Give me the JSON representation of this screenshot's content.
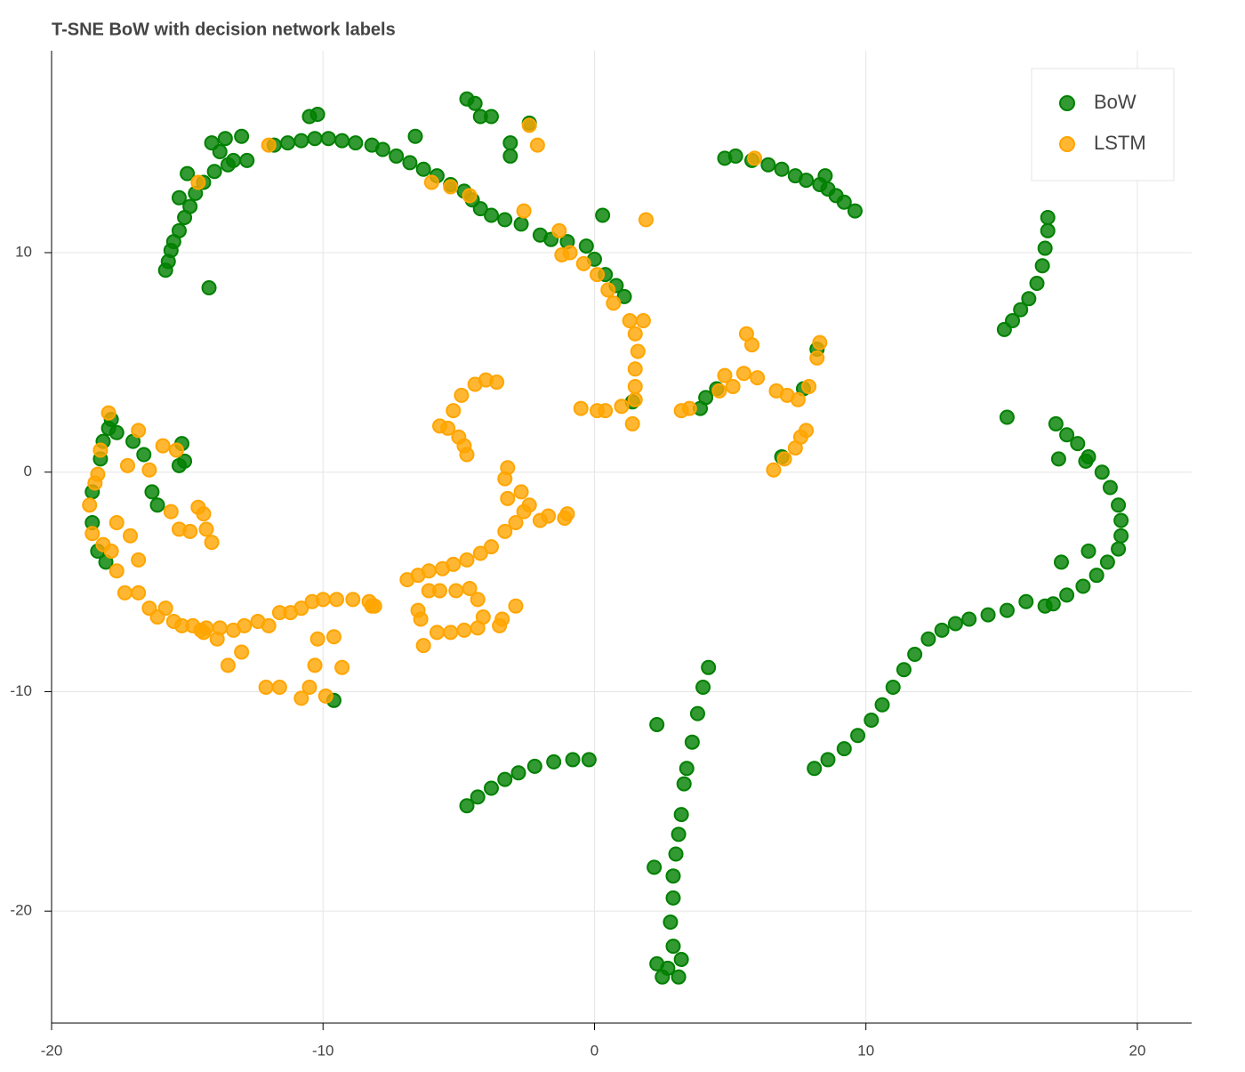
{
  "chart_data": {
    "type": "scatter",
    "title": "T-SNE BoW with decision network labels",
    "xlim": [
      -20,
      22
    ],
    "ylim": [
      -25.1,
      19.2
    ],
    "xticks": [
      -20,
      -10,
      0,
      10,
      20
    ],
    "yticks": [
      -20,
      -10,
      0,
      10
    ],
    "grid": true,
    "legend": "top-right",
    "series": [
      {
        "name": "BoW",
        "color": "green",
        "x": [
          -15.8,
          -15.7,
          -15.6,
          -15.5,
          -15.3,
          -15.1,
          -14.9,
          -15.3,
          -14.7,
          -14.4,
          -15,
          -14,
          -13.5,
          -13.3,
          -13.8,
          -14.1,
          -13.6,
          -13,
          -12.8,
          -11.8,
          -11.3,
          -10.8,
          -10.3,
          -9.8,
          -9.3,
          -8.8,
          -8.2,
          -7.8,
          -7.3,
          -6.8,
          -6.3,
          -5.8,
          -5.3,
          -4.8,
          -4.5,
          -4.2,
          -3.8,
          -3.3,
          -2.7,
          -2,
          -1.6,
          -1,
          -0.3,
          0,
          0.4,
          0.8,
          1.1,
          -14.2,
          -10.5,
          -10.2,
          -6.6,
          -4.7,
          -4.4,
          -4.2,
          -3.8,
          -2.4,
          -3.1,
          -3.1,
          0.3,
          1.4,
          4.8,
          5.2,
          5.8,
          6.4,
          6.9,
          7.4,
          7.8,
          8.3,
          8.6,
          8.9,
          9.2,
          9.6,
          8.5,
          4.5,
          4.1,
          3.9,
          7.7,
          8.2,
          6.9,
          15.1,
          15.4,
          15.7,
          16,
          16.3,
          16.5,
          16.6,
          16.7,
          16.7,
          15.2,
          17,
          17.4,
          17.8,
          18.2,
          18.7,
          19,
          19.3,
          19.4,
          19.4,
          19.3,
          18.9,
          18.5,
          18,
          17.4,
          16.9,
          16.6,
          17.1,
          18.1,
          17.2,
          18.2,
          15.9,
          15.2,
          14.5,
          13.8,
          13.3,
          12.8,
          12.3,
          11.8,
          11.4,
          11,
          10.6,
          10.2,
          9.7,
          9.2,
          8.6,
          8.1,
          2.3,
          4.2,
          4,
          3.8,
          3.6,
          3.4,
          3.3,
          3.2,
          3.1,
          3,
          2.9,
          2.9,
          2.8,
          2.9,
          2.7,
          3.2,
          3.1,
          2.5,
          2.3,
          2.2,
          -0.2,
          -0.8,
          -1.5,
          -2.2,
          -2.8,
          -3.3,
          -3.8,
          -4.3,
          -4.7,
          -18.5,
          -18.5,
          -18.2,
          -18.1,
          -17.9,
          -17.8,
          -17.6,
          -17,
          -16.6,
          -16.3,
          -16.1,
          -15.3,
          -15.1,
          -15.2,
          -18.3,
          -18,
          -9.6
        ],
        "values": [
          9.2,
          9.6,
          10.1,
          10.5,
          11,
          11.6,
          12.1,
          12.5,
          12.7,
          13.2,
          13.6,
          13.7,
          14,
          14.2,
          14.6,
          15,
          15.2,
          15.3,
          14.2,
          14.9,
          15,
          15.1,
          15.2,
          15.2,
          15.1,
          15,
          14.9,
          14.7,
          14.4,
          14.1,
          13.8,
          13.5,
          13.1,
          12.8,
          12.4,
          12,
          11.7,
          11.5,
          11.3,
          10.8,
          10.6,
          10.5,
          10.3,
          9.7,
          9,
          8.5,
          8,
          8.4,
          16.2,
          16.3,
          15.3,
          17,
          16.8,
          16.2,
          16.2,
          15.9,
          15,
          14.4,
          11.7,
          3.2,
          14.3,
          14.4,
          14.2,
          14,
          13.8,
          13.5,
          13.3,
          13.1,
          12.9,
          12.6,
          12.3,
          11.9,
          13.5,
          3.8,
          3.4,
          2.9,
          3.8,
          5.6,
          0.7,
          6.5,
          6.9,
          7.4,
          7.9,
          8.6,
          9.4,
          10.2,
          11,
          11.6,
          2.5,
          2.2,
          1.7,
          1.3,
          0.7,
          0,
          -0.7,
          -1.5,
          -2.2,
          -2.9,
          -3.5,
          -4.1,
          -4.7,
          -5.2,
          -5.6,
          -6,
          -6.1,
          0.6,
          0.5,
          -4.1,
          -3.6,
          -5.9,
          -6.3,
          -6.5,
          -6.7,
          -6.9,
          -7.2,
          -7.6,
          -8.3,
          -9,
          -9.8,
          -10.6,
          -11.3,
          -12,
          -12.6,
          -13.1,
          -13.5,
          -11.5,
          -8.9,
          -9.8,
          -11,
          -12.3,
          -13.5,
          -14.2,
          -15.6,
          -16.5,
          -17.4,
          -18.4,
          -19.4,
          -20.5,
          -21.6,
          -22.6,
          -22.2,
          -23,
          -23,
          -22.4,
          -18,
          -13.1,
          -13.1,
          -13.2,
          -13.4,
          -13.7,
          -14,
          -14.4,
          -14.8,
          -15.2,
          -2.3,
          -0.9,
          0.6,
          1.4,
          2,
          2.4,
          1.8,
          1.4,
          0.8,
          -0.9,
          -1.5,
          0.3,
          0.5,
          1.3,
          -3.6,
          -4.1,
          -10.4
        ]
      },
      {
        "name": "LSTM",
        "color": "orange",
        "x": [
          -18.6,
          -18.5,
          -18.4,
          -18.3,
          -18.2,
          -17.9,
          -18.1,
          -17.8,
          -17.6,
          -17.3,
          -17.6,
          -17.1,
          -16.8,
          -16.4,
          -16.1,
          -15.8,
          -15.5,
          -15.2,
          -14.8,
          -14.3,
          -13.8,
          -13.3,
          -12.9,
          -12.4,
          -12,
          -11.6,
          -11.2,
          -10.8,
          -10.4,
          -10,
          -9.5,
          -8.9,
          -8.3,
          -8.1,
          -13.5,
          -13,
          -12.1,
          -11.6,
          -10.8,
          -10.5,
          -10.3,
          -10.2,
          -9.9,
          -9.6,
          -9.3,
          -16.8,
          -16.4,
          -15.9,
          -15.4,
          -15.6,
          -15.3,
          -14.9,
          -14.6,
          -14.3,
          -14.1,
          -14.4,
          -17.2,
          -16.8,
          -13.9,
          -14.4,
          -14.5,
          -6.9,
          -6.5,
          -6.1,
          -5.6,
          -5.2,
          -4.7,
          -4.2,
          -3.8,
          -3.3,
          -2.9,
          -2.6,
          -2.7,
          -2.4,
          -2,
          -1.7,
          -1.1,
          -1,
          -3.2,
          -5.7,
          -5.4,
          -5,
          -4.8,
          -4.7,
          -5.2,
          -4.9,
          -4.4,
          -4,
          -3.6,
          -6.1,
          -5.7,
          -5.1,
          -4.6,
          -4.3,
          -6.5,
          -6.3,
          -5.8,
          -5.3,
          -4.8,
          -4.1,
          -4.3,
          -3.5,
          -3.4,
          -2.9,
          -6.4,
          -8.2,
          -0.5,
          0.1,
          0.4,
          1,
          1.5,
          1.5,
          1.5,
          1.6,
          1.5,
          1.3,
          1.8,
          1.4,
          0.7,
          0.5,
          0.1,
          -0.4,
          -0.9,
          -1.2,
          -3.3,
          -3.2,
          3.2,
          3.5,
          4.6,
          5.1,
          5.5,
          6,
          5.6,
          5.8,
          6.7,
          7.1,
          7.5,
          7.9,
          8.2,
          8.3,
          6.6,
          7,
          7.4,
          7.6,
          7.8,
          1.9,
          -2.6,
          -2.4,
          -2.1,
          -1.3,
          -5.3,
          -6,
          -4.6,
          -12,
          -14.6,
          4.8,
          5.9
        ],
        "values": [
          -1.5,
          -2.8,
          -0.5,
          -0.1,
          1,
          2.7,
          -3.3,
          -3.6,
          -4.5,
          -5.5,
          -2.3,
          -2.9,
          -5.5,
          -6.2,
          -6.6,
          -6.2,
          -6.8,
          -7,
          -7,
          -7.1,
          -7.1,
          -7.2,
          -7,
          -6.8,
          -7,
          -6.4,
          -6.4,
          -6.2,
          -5.9,
          -5.8,
          -5.8,
          -5.8,
          -5.9,
          -6.1,
          -8.8,
          -8.2,
          -9.8,
          -9.8,
          -10.3,
          -9.8,
          -8.8,
          -7.6,
          -10.2,
          -7.5,
          -8.9,
          1.9,
          0.1,
          1.2,
          1,
          -1.8,
          -2.6,
          -2.7,
          -1.6,
          -2.6,
          -3.2,
          -1.9,
          0.3,
          -4,
          -7.6,
          -7.3,
          -7.2,
          -4.9,
          -4.7,
          -4.5,
          -4.4,
          -4.2,
          -4,
          -3.7,
          -3.4,
          -2.7,
          -2.3,
          -1.8,
          -0.9,
          -1.5,
          -2.2,
          -2,
          -2.1,
          -1.9,
          0.2,
          2.1,
          2,
          1.6,
          1.2,
          0.8,
          2.8,
          3.5,
          4,
          4.2,
          4.1,
          -5.4,
          -5.4,
          -5.4,
          -5.3,
          -5.8,
          -6.3,
          -7.9,
          -7.3,
          -7.3,
          -7.2,
          -6.6,
          -7.1,
          -7,
          -6.7,
          -6.1,
          -6.7,
          -6.1,
          2.9,
          2.8,
          2.8,
          3,
          3.3,
          3.9,
          4.7,
          5.5,
          6.3,
          6.9,
          6.9,
          2.2,
          7.7,
          8.3,
          9,
          9.5,
          10,
          9.9,
          -0.3,
          -1.2,
          2.8,
          2.9,
          3.7,
          3.9,
          4.5,
          4.3,
          6.3,
          5.8,
          3.7,
          3.5,
          3.3,
          3.9,
          5.2,
          5.9,
          0.1,
          0.6,
          1.1,
          1.6,
          1.9,
          11.5,
          11.9,
          15.8,
          14.9,
          11,
          13,
          13.2,
          12.6,
          14.9,
          13.2,
          4.4,
          14.3
        ]
      }
    ]
  }
}
